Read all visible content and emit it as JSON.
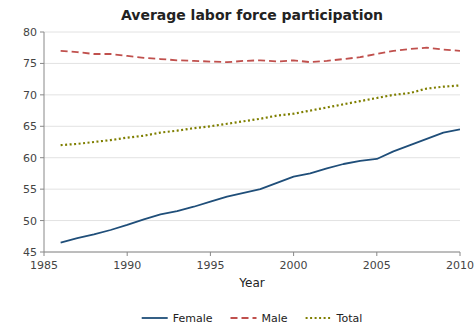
{
  "chart_data": {
    "type": "line",
    "title": "Average labor force participation",
    "xlabel": "Year",
    "x": [
      1986,
      1987,
      1988,
      1989,
      1990,
      1991,
      1992,
      1993,
      1994,
      1995,
      1996,
      1997,
      1998,
      1999,
      2000,
      2001,
      2002,
      2003,
      2004,
      2005,
      2006,
      2007,
      2008,
      2009,
      2010
    ],
    "series": [
      {
        "name": "Female",
        "color": "#1f4e79",
        "line_style": "solid",
        "values": [
          46.5,
          47.2,
          47.8,
          48.5,
          49.3,
          50.2,
          51.0,
          51.5,
          52.2,
          53.0,
          53.8,
          54.4,
          55.0,
          56.0,
          57.0,
          57.5,
          58.3,
          59.0,
          59.5,
          59.8,
          61.0,
          62.0,
          63.0,
          64.0,
          64.5
        ]
      },
      {
        "name": "Male",
        "color": "#c0504d",
        "line_style": "dashed",
        "values": [
          77.0,
          76.8,
          76.5,
          76.5,
          76.2,
          75.9,
          75.7,
          75.5,
          75.4,
          75.3,
          75.2,
          75.4,
          75.5,
          75.3,
          75.5,
          75.2,
          75.4,
          75.7,
          76.0,
          76.5,
          77.0,
          77.3,
          77.5,
          77.2,
          77.0
        ]
      },
      {
        "name": "Total",
        "color": "#7f7f00",
        "line_style": "dotted",
        "values": [
          62.0,
          62.2,
          62.5,
          62.8,
          63.2,
          63.5,
          64.0,
          64.3,
          64.7,
          65.0,
          65.4,
          65.8,
          66.2,
          66.7,
          67.0,
          67.5,
          68.0,
          68.5,
          69.0,
          69.5,
          70.0,
          70.3,
          71.0,
          71.3,
          71.5
        ]
      }
    ],
    "xlim": [
      1985,
      2010
    ],
    "ylim": [
      45,
      80
    ],
    "xticks": [
      1985,
      1990,
      1995,
      2000,
      2005,
      2010
    ],
    "yticks": [
      45,
      50,
      55,
      60,
      65,
      70,
      75,
      80
    ],
    "grid": true,
    "legend": "bottom"
  }
}
